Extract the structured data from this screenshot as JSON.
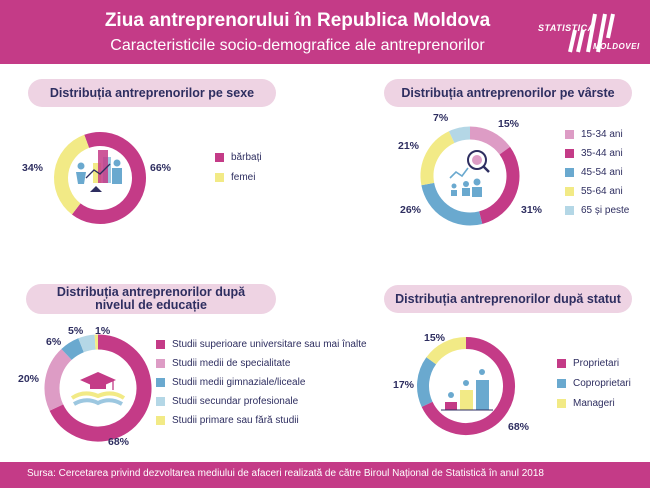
{
  "header": {
    "title": "Ziua antreprenorului în Republica Moldova",
    "subtitle": "Caracteristicile socio-demografice ale antreprenorilor",
    "logo_line1": "STATISTICA",
    "logo_line2": "MOLDOVEI"
  },
  "colors": {
    "pink": "#c43b87",
    "light_pink": "#dd9cc5",
    "blue": "#6aa9cf",
    "yellow": "#f2ea86",
    "light_blue": "#b4d7e6"
  },
  "chart_data": [
    {
      "id": "sex",
      "type": "pie",
      "title": "Distribuția antreprenorilor pe sexe",
      "labels": [
        "bărbați",
        "femei"
      ],
      "values": [
        66,
        34
      ],
      "value_labels": [
        "66%",
        "34%"
      ],
      "colors": [
        "#c43b87",
        "#f2ea86"
      ]
    },
    {
      "id": "age",
      "type": "pie",
      "title": "Distribuția antreprenorilor pe vârste",
      "labels": [
        "15-34 ani",
        "35-44 ani",
        "45-54 ani",
        "55-64 ani",
        "65 și peste"
      ],
      "values": [
        15,
        31,
        26,
        21,
        7
      ],
      "value_labels": [
        "15%",
        "31%",
        "26%",
        "21%",
        "7%"
      ],
      "colors": [
        "#dd9cc5",
        "#c43b87",
        "#6aa9cf",
        "#f2ea86",
        "#b4d7e6"
      ]
    },
    {
      "id": "edu",
      "type": "pie",
      "title": "Distribuția antreprenorilor după nivelul de educație",
      "labels": [
        "Studii superioare universitare sau mai înalte",
        "Studii medii de specialitate",
        "Studii medii gimnaziale/liceale",
        "Studii secundar profesionale",
        "Studii primare sau fără studii"
      ],
      "values": [
        68,
        20,
        6,
        5,
        1
      ],
      "value_labels": [
        "68%",
        "20%",
        "6%",
        "5%",
        "1%"
      ],
      "colors": [
        "#c43b87",
        "#dd9cc5",
        "#6aa9cf",
        "#b4d7e6",
        "#f2ea86"
      ]
    },
    {
      "id": "status",
      "type": "pie",
      "title": "Distribuția antreprenorilor după statut",
      "labels": [
        "Proprietari",
        "Coproprietari",
        "Manageri"
      ],
      "values": [
        68,
        17,
        15
      ],
      "value_labels": [
        "68%",
        "17%",
        "15%"
      ],
      "colors": [
        "#c43b87",
        "#6aa9cf",
        "#f2ea86"
      ]
    }
  ],
  "footer": {
    "source": "Sursa: Cercetarea privind dezvoltarea mediului de afaceri realizată de către Biroul Național de Statistică în anul 2018"
  }
}
